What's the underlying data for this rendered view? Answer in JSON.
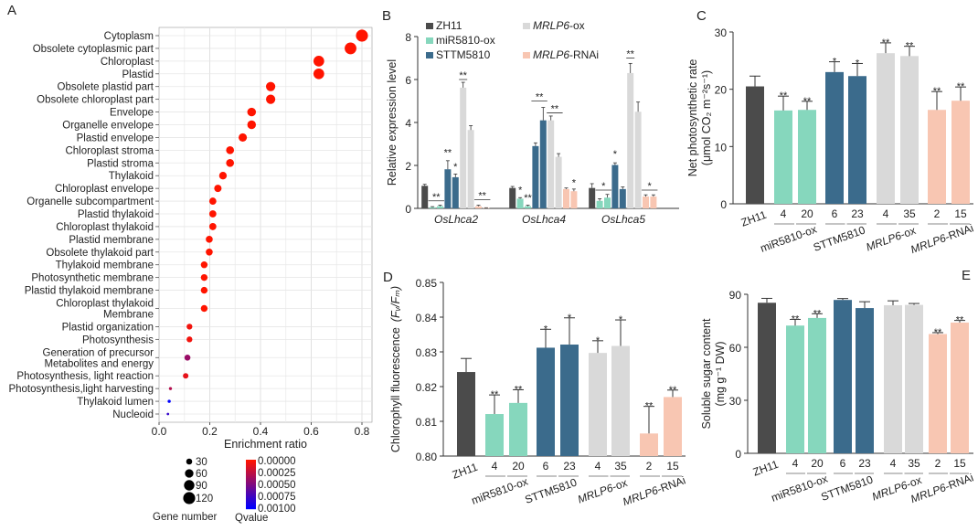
{
  "panel_letters": [
    "A",
    "B",
    "C",
    "D",
    "E"
  ],
  "colors": {
    "ZH11": "#4b4b4b",
    "miR5810-ox": "#86d7bd",
    "STTM5810": "#3b6b8c",
    "MRLP6-ox": "#d9d9d9",
    "MRLP6-RNAi": "#f8c6b2",
    "dot_low_q": "#ff1a1a",
    "dot_high_q": "#2020ff"
  },
  "chart_data": [
    {
      "panel": "A",
      "type": "scatter",
      "xlabel": "Enrichment ratio",
      "xlim": [
        0,
        0.85
      ],
      "xticks": [
        "0.0",
        "0.2",
        "0.4",
        "0.6",
        "0.8"
      ],
      "grid": true,
      "terms": [
        {
          "label": [
            "Cytoplasm"
          ],
          "ratio": 0.8,
          "genes": 120,
          "q": 0
        },
        {
          "label": [
            "Obsolete cytoplasmic part"
          ],
          "ratio": 0.755,
          "genes": 115,
          "q": 0
        },
        {
          "label": [
            "Chloroplast"
          ],
          "ratio": 0.63,
          "genes": 95,
          "q": 0
        },
        {
          "label": [
            "Plastid"
          ],
          "ratio": 0.63,
          "genes": 95,
          "q": 0
        },
        {
          "label": [
            "Obsolete plastid part"
          ],
          "ratio": 0.44,
          "genes": 72,
          "q": 0
        },
        {
          "label": [
            "Obsolete chloroplast part"
          ],
          "ratio": 0.44,
          "genes": 72,
          "q": 0
        },
        {
          "label": [
            "Envelope"
          ],
          "ratio": 0.365,
          "genes": 62,
          "q": 0
        },
        {
          "label": [
            "Organelle envelope"
          ],
          "ratio": 0.365,
          "genes": 62,
          "q": 0
        },
        {
          "label": [
            "Plastid envelope"
          ],
          "ratio": 0.33,
          "genes": 58,
          "q": 0
        },
        {
          "label": [
            "Chloroplast stroma"
          ],
          "ratio": 0.28,
          "genes": 52,
          "q": 0
        },
        {
          "label": [
            "Plastid stroma"
          ],
          "ratio": 0.28,
          "genes": 52,
          "q": 0
        },
        {
          "label": [
            "Thylakoid"
          ],
          "ratio": 0.252,
          "genes": 48,
          "q": 0
        },
        {
          "label": [
            "Chloroplast envelope"
          ],
          "ratio": 0.232,
          "genes": 45,
          "q": 0
        },
        {
          "label": [
            "Organelle subcompartment"
          ],
          "ratio": 0.212,
          "genes": 42,
          "q": 0
        },
        {
          "label": [
            "Plastid thylakoid"
          ],
          "ratio": 0.212,
          "genes": 42,
          "q": 0
        },
        {
          "label": [
            "Chloroplast thylakoid"
          ],
          "ratio": 0.212,
          "genes": 42,
          "q": 0
        },
        {
          "label": [
            "Plastid membrane"
          ],
          "ratio": 0.198,
          "genes": 40,
          "q": 0
        },
        {
          "label": [
            "Obsolete thylakoid part"
          ],
          "ratio": 0.198,
          "genes": 40,
          "q": 0
        },
        {
          "label": [
            "Thylakoid membrane"
          ],
          "ratio": 0.178,
          "genes": 38,
          "q": 0
        },
        {
          "label": [
            "Photosynthetic membrane"
          ],
          "ratio": 0.178,
          "genes": 38,
          "q": 0
        },
        {
          "label": [
            "Plastid thylakoid membrane"
          ],
          "ratio": 0.178,
          "genes": 38,
          "q": 0
        },
        {
          "label": [
            "Chloroplast thylakoid",
            "Membrane"
          ],
          "ratio": 0.178,
          "genes": 38,
          "q": 0
        },
        {
          "label": [
            "Plastid organization"
          ],
          "ratio": 0.12,
          "genes": 28,
          "q": 5e-05
        },
        {
          "label": [
            "Photosynthesis"
          ],
          "ratio": 0.12,
          "genes": 28,
          "q": 5e-05
        },
        {
          "label": [
            "Generation of precursor",
            "Metabolites and energy"
          ],
          "ratio": 0.112,
          "genes": 30,
          "q": 0.0004
        },
        {
          "label": [
            "Photosynthesis, light reaction"
          ],
          "ratio": 0.105,
          "genes": 25,
          "q": 0.0001
        },
        {
          "label": [
            "Photosynthesis,light harvesting"
          ],
          "ratio": 0.045,
          "genes": 8,
          "q": 0.0003
        },
        {
          "label": [
            "Thylakoid lumen"
          ],
          "ratio": 0.04,
          "genes": 8,
          "q": 0.001
        },
        {
          "label": [
            "Nucleoid"
          ],
          "ratio": 0.035,
          "genes": 5,
          "q": 0.0008
        }
      ],
      "size_legend": {
        "title": "Gene number",
        "values": [
          "30",
          "60",
          "90",
          "120"
        ]
      },
      "color_legend": {
        "title": "Qvalue",
        "ticks": [
          "0.00000",
          "0.00025",
          "0.00050",
          "0.00075",
          "0.00100"
        ]
      }
    },
    {
      "panel": "B",
      "type": "bar",
      "ylabel": "Relative expression level",
      "ylim": [
        0,
        8
      ],
      "yticks": [
        "0",
        "2",
        "4",
        "6",
        "8"
      ],
      "legend": [
        {
          "label": "ZH11",
          "color_key": "ZH11"
        },
        {
          "label": "miR5810-ox",
          "color_key": "miR5810-ox"
        },
        {
          "label": "STTM5810",
          "color_key": "STTM5810"
        },
        {
          "label_italic": "MRLP6",
          "label": "-ox",
          "color_key": "MRLP6-ox"
        },
        {
          "label_italic": "MRLP6",
          "label": "-RNAi",
          "color_key": "MRLP6-RNAi"
        }
      ],
      "bar_colors": [
        "ZH11",
        "miR5810-ox",
        "miR5810-ox",
        "STTM5810",
        "STTM5810",
        "MRLP6-ox",
        "MRLP6-ox",
        "MRLP6-RNAi",
        "MRLP6-RNAi"
      ],
      "genes": [
        {
          "name": "OsLhca2",
          "values": [
            1.05,
            0.05,
            0.1,
            1.82,
            1.45,
            5.62,
            3.65,
            0.1,
            0.02
          ],
          "errors": [
            0.07,
            0.03,
            0.05,
            0.4,
            0.15,
            0.25,
            0.2,
            0.05,
            0.01
          ],
          "annotations": [
            {
              "text": "**",
              "from": 1,
              "to": 2,
              "y": 0.35,
              "line": true
            },
            {
              "text": "**",
              "from": 3,
              "to": 3,
              "y": 2.4,
              "line": false
            },
            {
              "text": "*",
              "from": 4,
              "to": 4,
              "y": 1.75,
              "line": false
            },
            {
              "text": "**",
              "from": 5,
              "to": 5,
              "y": 6.0,
              "line": true
            },
            {
              "text": "**",
              "from": 7,
              "to": 8,
              "y": 0.4,
              "line": true
            }
          ]
        },
        {
          "name": "OsLhca4",
          "values": [
            0.95,
            0.45,
            0.1,
            2.9,
            4.1,
            4.1,
            2.4,
            0.9,
            0.8
          ],
          "errors": [
            0.07,
            0.05,
            0.05,
            0.15,
            0.6,
            0.2,
            0.15,
            0.05,
            0.1
          ],
          "annotations": [
            {
              "text": "*",
              "from": 1,
              "to": 1,
              "y": 0.65,
              "line": false
            },
            {
              "text": "**",
              "from": 2,
              "to": 2,
              "y": 0.3,
              "line": false
            },
            {
              "text": "**",
              "from": 3,
              "to": 4,
              "y": 5.0,
              "line": true
            },
            {
              "text": "**",
              "from": 5,
              "to": 6,
              "y": 4.45,
              "line": true
            },
            {
              "text": "*",
              "from": 8,
              "to": 8,
              "y": 1.0,
              "line": false
            }
          ]
        },
        {
          "name": "OsLhca5",
          "values": [
            0.95,
            0.35,
            0.5,
            2.02,
            0.9,
            6.3,
            4.5,
            0.55,
            0.55
          ],
          "errors": [
            0.2,
            0.1,
            0.15,
            0.1,
            0.1,
            0.45,
            0.45,
            0.08,
            0.08
          ],
          "annotations": [
            {
              "text": "*",
              "from": 1,
              "to": 2,
              "y": 0.85,
              "line": true
            },
            {
              "text": "*",
              "from": 3,
              "to": 3,
              "y": 2.35,
              "line": false
            },
            {
              "text": "**",
              "from": 5,
              "to": 5,
              "y": 7.0,
              "line": true
            },
            {
              "text": "*",
              "from": 7,
              "to": 8,
              "y": 0.85,
              "line": true
            }
          ]
        }
      ]
    },
    {
      "panel": "C",
      "type": "bar",
      "ylabel": "Net photosynthetic rate",
      "yunit": "(μmol CO₂ m⁻²s⁻¹)",
      "ylim": [
        0,
        30
      ],
      "yticks": [
        "0",
        "10",
        "20",
        "30"
      ],
      "values": [
        20.5,
        16.3,
        16.4,
        23.0,
        22.3,
        26.3,
        25.8,
        16.4,
        18.0
      ],
      "errors": [
        1.8,
        2.5,
        1.5,
        1.8,
        2.2,
        1.8,
        1.7,
        3.2,
        2.4
      ],
      "sig": [
        "",
        "**",
        "**",
        "*",
        "*",
        "**",
        "**",
        "**",
        "**"
      ]
    },
    {
      "panel": "D",
      "type": "bar",
      "ylabel": "Chlorophyll fluorescence",
      "yunit_italic": "(Fᵥ/Fₘ)",
      "ylim": [
        0.8,
        0.85
      ],
      "yticks": [
        "0.80",
        "0.81",
        "0.82",
        "0.83",
        "0.84",
        "0.85"
      ],
      "values": [
        0.8242,
        0.8121,
        0.8153,
        0.8312,
        0.8321,
        0.8297,
        0.8317,
        0.8065,
        0.817
      ],
      "errors": [
        0.0039,
        0.0055,
        0.0038,
        0.0053,
        0.0077,
        0.0035,
        0.0075,
        0.0078,
        0.002
      ],
      "sig": [
        "",
        "**",
        "**",
        "*",
        "*",
        "*",
        "*",
        "**",
        "**"
      ]
    },
    {
      "panel": "E",
      "type": "bar",
      "ylabel": "Soluble sugar content",
      "yunit": "(mg g⁻¹ DW)",
      "ylim": [
        0,
        90
      ],
      "yticks": [
        "0",
        "30",
        "60",
        "90"
      ],
      "values": [
        85.2,
        72.3,
        76.6,
        86.8,
        82.2,
        83.8,
        84.0,
        67.5,
        74.0
      ],
      "errors": [
        2.5,
        3.5,
        2.4,
        0.8,
        3.6,
        2.5,
        0.8,
        0.8,
        1.2
      ],
      "sig": [
        "",
        "**",
        "**",
        "",
        "",
        "",
        "",
        "**",
        "**"
      ]
    }
  ],
  "genotypes": {
    "bar_labels": [
      "ZH11",
      "4",
      "20",
      "6",
      "23",
      "4",
      "35",
      "2",
      "15"
    ],
    "groups": [
      {
        "label": "miR5810-ox"
      },
      {
        "label": "STTM5810"
      },
      {
        "label_italic": "MRLP6",
        "label": "-ox"
      },
      {
        "label_italic": "MRLP6",
        "label": "-RNAi"
      }
    ]
  }
}
